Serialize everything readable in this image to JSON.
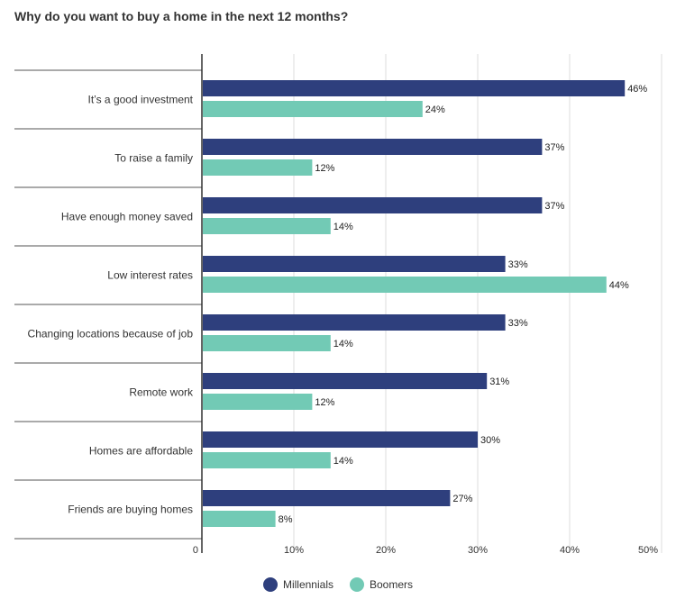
{
  "colors": {
    "millennials": "#2e3f7d",
    "boomers": "#72cab5",
    "grid": "#dcdcdc",
    "axis": "#333333",
    "separator": "#555555",
    "text": "#333333"
  },
  "chart_data": {
    "type": "bar",
    "orientation": "horizontal",
    "title": "Why do you want to buy a home in the next 12 months?",
    "categories": [
      "It’s a good investment",
      "To raise a family",
      "Have enough money saved",
      "Low interest rates",
      "Changing locations because of job",
      "Remote work",
      "Homes are affordable",
      "Friends are buying homes"
    ],
    "series": [
      {
        "name": "Millennials",
        "values": [
          46,
          37,
          37,
          33,
          33,
          31,
          30,
          27
        ],
        "labels": [
          "46%",
          "37%",
          "37%",
          "33%",
          "33%",
          "31%",
          "30%",
          "27%"
        ]
      },
      {
        "name": "Boomers",
        "values": [
          24,
          12,
          14,
          44,
          14,
          12,
          14,
          8
        ],
        "labels": [
          "24%",
          "12%",
          "14%",
          "44%",
          "14%",
          "12%",
          "14%",
          "8%"
        ]
      }
    ],
    "xlim": [
      0,
      50
    ],
    "xticks": [
      0,
      10,
      20,
      30,
      40,
      50
    ],
    "xtick_labels": [
      "0",
      "10%",
      "20%",
      "30%",
      "40%",
      "50%"
    ],
    "grid": true,
    "legend_position": "bottom-center"
  }
}
